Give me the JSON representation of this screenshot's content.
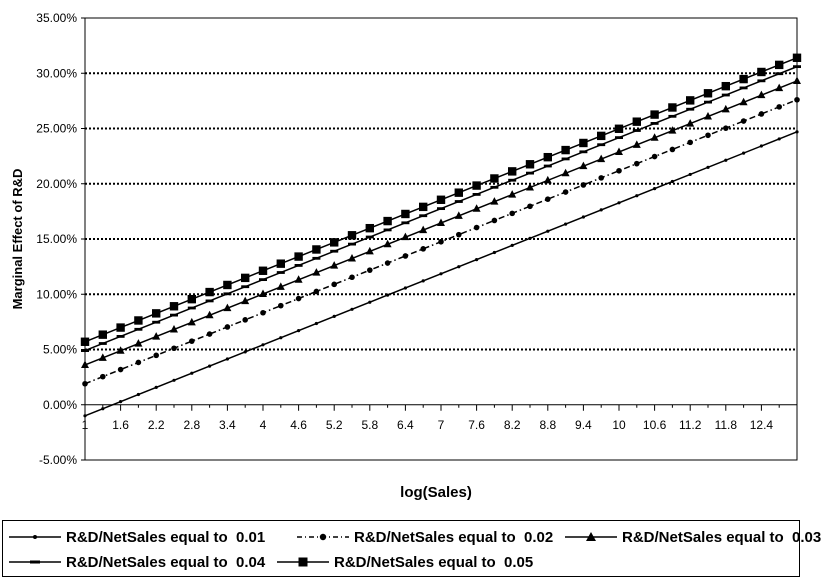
{
  "chart_data": {
    "type": "line",
    "xlabel": "log(Sales)",
    "ylabel": "Marginal Effect of R&D",
    "x_tick_labels": [
      "1",
      "1.6",
      "2.2",
      "2.8",
      "3.4",
      "4",
      "4.6",
      "5.2",
      "5.8",
      "6.4",
      "7",
      "7.6",
      "8.2",
      "8.8",
      "9.4",
      "10",
      "10.6",
      "11.2",
      "11.8",
      "12.4"
    ],
    "y_tick_labels": [
      "-5.00%",
      "0.00%",
      "5.00%",
      "10.00%",
      "15.00%",
      "20.00%",
      "25.00%",
      "30.00%",
      "35.00%"
    ],
    "xlim": [
      1,
      13
    ],
    "ylim": [
      -5,
      35
    ],
    "grid": "horizontal dotted",
    "legend_position": "bottom",
    "series": [
      {
        "name": "R&D/NetSales equal to  0.01",
        "marker": "dot",
        "line": "solid",
        "y_start": -1.0,
        "y_end": 24.7
      },
      {
        "name": "R&D/NetSales equal to  0.02",
        "marker": "circle",
        "line": "dash-dot",
        "y_start": 1.9,
        "y_end": 27.6
      },
      {
        "name": "R&D/NetSales equal to  0.03",
        "marker": "triangle",
        "line": "solid",
        "y_start": 3.6,
        "y_end": 29.3
      },
      {
        "name": "R&D/NetSales equal to  0.04",
        "marker": "dash",
        "line": "solid",
        "y_start": 4.9,
        "y_end": 30.6
      },
      {
        "name": "R&D/NetSales equal to  0.05",
        "marker": "square",
        "line": "solid",
        "y_start": 5.7,
        "y_end": 31.4
      }
    ]
  }
}
